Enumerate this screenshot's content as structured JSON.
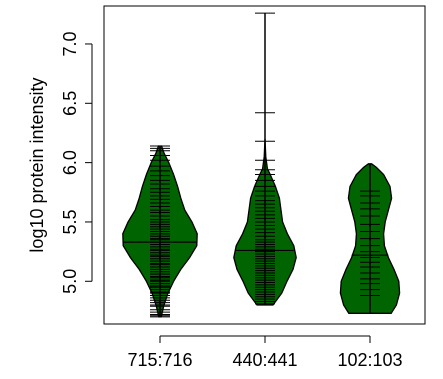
{
  "chart_data": {
    "type": "violin",
    "title": "",
    "xlabel": "",
    "ylabel": "log10 protein intensity",
    "ylim": [
      4.64,
      7.32
    ],
    "y_ticks": [
      5.0,
      5.5,
      6.0,
      6.5,
      7.0
    ],
    "y_tick_labels": [
      "5.0",
      "5.5",
      "6.0",
      "6.5",
      "7.0"
    ],
    "categories": [
      "715:716",
      "440:441",
      "102:103"
    ],
    "colors": {
      "violin_fill": "#006400",
      "outline": "#000000",
      "background": "#ffffff"
    },
    "series": [
      {
        "category": "715:716",
        "min": 4.7,
        "max": 6.14,
        "median": 5.33,
        "density": [
          [
            4.7,
            0.03
          ],
          [
            4.8,
            0.1
          ],
          [
            4.9,
            0.2
          ],
          [
            5.0,
            0.34
          ],
          [
            5.1,
            0.52
          ],
          [
            5.2,
            0.74
          ],
          [
            5.3,
            0.92
          ],
          [
            5.4,
            0.93
          ],
          [
            5.5,
            0.8
          ],
          [
            5.6,
            0.62
          ],
          [
            5.7,
            0.52
          ],
          [
            5.8,
            0.44
          ],
          [
            5.9,
            0.34
          ],
          [
            6.0,
            0.22
          ],
          [
            6.08,
            0.1
          ],
          [
            6.14,
            0.04
          ]
        ],
        "points": [
          4.7,
          4.71,
          4.72,
          4.74,
          4.76,
          4.79,
          4.8,
          4.82,
          4.84,
          4.86,
          4.88,
          4.9,
          4.91,
          4.93,
          4.95,
          4.96,
          4.98,
          5.0,
          5.01,
          5.03,
          5.04,
          5.06,
          5.08,
          5.1,
          5.12,
          5.14,
          5.15,
          5.17,
          5.19,
          5.21,
          5.22,
          5.24,
          5.26,
          5.27,
          5.29,
          5.31,
          5.33,
          5.35,
          5.36,
          5.38,
          5.4,
          5.42,
          5.44,
          5.46,
          5.48,
          5.5,
          5.52,
          5.55,
          5.58,
          5.6,
          5.63,
          5.66,
          5.69,
          5.72,
          5.75,
          5.78,
          5.82,
          5.85,
          5.89,
          5.93,
          5.97,
          6.02,
          6.06,
          6.1,
          6.12,
          6.14
        ]
      },
      {
        "category": "440:441",
        "min": 4.8,
        "max": 7.26,
        "median": 5.26,
        "density": [
          [
            4.8,
            0.2
          ],
          [
            4.9,
            0.42
          ],
          [
            5.0,
            0.55
          ],
          [
            5.1,
            0.7
          ],
          [
            5.2,
            0.78
          ],
          [
            5.3,
            0.72
          ],
          [
            5.4,
            0.56
          ],
          [
            5.5,
            0.44
          ],
          [
            5.6,
            0.4
          ],
          [
            5.7,
            0.36
          ],
          [
            5.8,
            0.26
          ],
          [
            5.9,
            0.13
          ],
          [
            5.95,
            0.06
          ],
          [
            6.05,
            0.02
          ],
          [
            6.2,
            0.0
          ]
        ],
        "points": [
          4.81,
          4.83,
          4.85,
          4.87,
          4.89,
          4.91,
          4.93,
          4.95,
          4.97,
          4.99,
          5.01,
          5.03,
          5.05,
          5.07,
          5.09,
          5.11,
          5.13,
          5.15,
          5.17,
          5.19,
          5.21,
          5.23,
          5.25,
          5.27,
          5.29,
          5.31,
          5.33,
          5.35,
          5.38,
          5.41,
          5.44,
          5.47,
          5.5,
          5.53,
          5.56,
          5.59,
          5.62,
          5.65,
          5.68,
          5.72,
          5.76,
          5.8,
          5.85,
          5.9,
          5.94,
          6.02,
          6.18,
          6.42,
          7.26
        ]
      },
      {
        "category": "102:103",
        "min": 4.73,
        "max": 5.99,
        "median": 5.22,
        "density": [
          [
            4.73,
            0.53
          ],
          [
            4.8,
            0.66
          ],
          [
            4.9,
            0.74
          ],
          [
            5.0,
            0.72
          ],
          [
            5.1,
            0.6
          ],
          [
            5.2,
            0.46
          ],
          [
            5.3,
            0.36
          ],
          [
            5.4,
            0.34
          ],
          [
            5.5,
            0.38
          ],
          [
            5.6,
            0.46
          ],
          [
            5.7,
            0.54
          ],
          [
            5.8,
            0.5
          ],
          [
            5.9,
            0.34
          ],
          [
            5.96,
            0.16
          ],
          [
            5.99,
            0.04
          ]
        ],
        "points": [
          4.88,
          4.93,
          4.98,
          5.02,
          5.07,
          5.12,
          5.16,
          5.2,
          5.25,
          5.3,
          5.36,
          5.42,
          5.48,
          5.55,
          5.61,
          5.66,
          5.72,
          5.76
        ]
      }
    ]
  }
}
